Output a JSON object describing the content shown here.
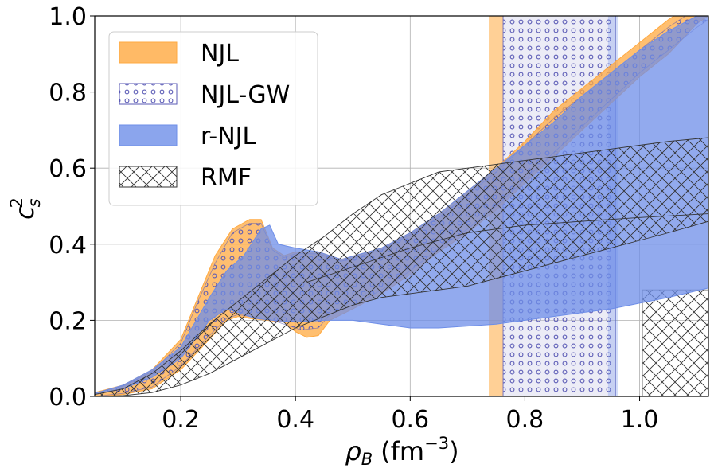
{
  "chart_data": {
    "type": "area",
    "title": "",
    "xlabel": "ρ_B (fm⁻³)",
    "xlabel_main": "ρ",
    "xlabel_sub": "B",
    "xlabel_unit": "(fm",
    "xlabel_sup": "−3",
    "xlabel_close": ")",
    "ylabel": "c_s^2",
    "ylabel_main": "c",
    "ylabel_sub": "s",
    "ylabel_sup": "2",
    "xlim": [
      0.05,
      1.12
    ],
    "ylim": [
      0.0,
      1.0
    ],
    "xticks": [
      0.2,
      0.4,
      0.6,
      0.8,
      1.0
    ],
    "xtick_labels": [
      "0.2",
      "0.4",
      "0.6",
      "0.8",
      "1.0"
    ],
    "yticks": [
      0.0,
      0.2,
      0.4,
      0.6,
      0.8,
      1.0
    ],
    "ytick_labels": [
      "0.0",
      "0.2",
      "0.4",
      "0.6",
      "0.8",
      "1.0"
    ],
    "grid": true,
    "legend_position": "top-left",
    "series": [
      {
        "name": "NJL",
        "style": "fill",
        "color": "#ffa940",
        "opacity": 0.75,
        "lower": [
          [
            0.05,
            0.0
          ],
          [
            0.1,
            0.005
          ],
          [
            0.15,
            0.02
          ],
          [
            0.2,
            0.07
          ],
          [
            0.25,
            0.15
          ],
          [
            0.28,
            0.2
          ],
          [
            0.3,
            0.21
          ],
          [
            0.32,
            0.205
          ],
          [
            0.35,
            0.2
          ],
          [
            0.38,
            0.195
          ],
          [
            0.4,
            0.17
          ],
          [
            0.42,
            0.155
          ],
          [
            0.44,
            0.16
          ],
          [
            0.46,
            0.2
          ],
          [
            0.5,
            0.23
          ],
          [
            0.55,
            0.27
          ],
          [
            0.6,
            0.32
          ],
          [
            0.65,
            0.38
          ],
          [
            0.7,
            0.43
          ],
          [
            0.75,
            0.49
          ],
          [
            0.8,
            0.56
          ],
          [
            0.85,
            0.63
          ],
          [
            0.9,
            0.7
          ],
          [
            0.95,
            0.77
          ],
          [
            1.0,
            0.84
          ],
          [
            1.05,
            0.9
          ],
          [
            1.1,
            0.98
          ],
          [
            1.12,
            1.0
          ]
        ],
        "upper": [
          [
            0.05,
            0.01
          ],
          [
            0.1,
            0.03
          ],
          [
            0.15,
            0.07
          ],
          [
            0.2,
            0.15
          ],
          [
            0.23,
            0.26
          ],
          [
            0.26,
            0.37
          ],
          [
            0.29,
            0.44
          ],
          [
            0.32,
            0.465
          ],
          [
            0.34,
            0.465
          ],
          [
            0.36,
            0.39
          ],
          [
            0.38,
            0.37
          ],
          [
            0.4,
            0.38
          ],
          [
            0.44,
            0.38
          ],
          [
            0.48,
            0.36
          ],
          [
            0.55,
            0.39
          ],
          [
            0.6,
            0.43
          ],
          [
            0.65,
            0.48
          ],
          [
            0.7,
            0.54
          ],
          [
            0.75,
            0.6
          ],
          [
            0.8,
            0.67
          ],
          [
            0.85,
            0.75
          ],
          [
            0.9,
            0.81
          ],
          [
            0.95,
            0.87
          ],
          [
            1.0,
            0.93
          ],
          [
            1.05,
            0.99
          ],
          [
            1.06,
            1.0
          ],
          [
            1.12,
            1.0
          ]
        ]
      },
      {
        "name": "NJL-GW",
        "style": "circles",
        "color": "#5a5ab5",
        "lower": [
          [
            0.05,
            0.0
          ],
          [
            0.1,
            0.008
          ],
          [
            0.15,
            0.025
          ],
          [
            0.2,
            0.08
          ],
          [
            0.25,
            0.16
          ],
          [
            0.28,
            0.205
          ],
          [
            0.3,
            0.215
          ],
          [
            0.32,
            0.21
          ],
          [
            0.35,
            0.205
          ],
          [
            0.38,
            0.19
          ],
          [
            0.41,
            0.175
          ],
          [
            0.44,
            0.18
          ],
          [
            0.46,
            0.215
          ],
          [
            0.5,
            0.24
          ],
          [
            0.55,
            0.28
          ],
          [
            0.6,
            0.33
          ],
          [
            0.65,
            0.39
          ],
          [
            0.7,
            0.44
          ],
          [
            0.75,
            0.5
          ],
          [
            0.8,
            0.57
          ],
          [
            0.85,
            0.64
          ],
          [
            0.9,
            0.71
          ],
          [
            0.95,
            0.78
          ],
          [
            1.0,
            0.85
          ],
          [
            1.05,
            0.91
          ],
          [
            1.1,
            0.97
          ],
          [
            1.12,
            0.99
          ]
        ],
        "upper": [
          [
            0.05,
            0.008
          ],
          [
            0.1,
            0.028
          ],
          [
            0.15,
            0.065
          ],
          [
            0.2,
            0.14
          ],
          [
            0.23,
            0.25
          ],
          [
            0.26,
            0.35
          ],
          [
            0.29,
            0.43
          ],
          [
            0.32,
            0.455
          ],
          [
            0.34,
            0.455
          ],
          [
            0.36,
            0.385
          ],
          [
            0.38,
            0.365
          ],
          [
            0.4,
            0.375
          ],
          [
            0.44,
            0.375
          ],
          [
            0.48,
            0.355
          ],
          [
            0.55,
            0.385
          ],
          [
            0.6,
            0.425
          ],
          [
            0.65,
            0.47
          ],
          [
            0.7,
            0.53
          ],
          [
            0.75,
            0.59
          ],
          [
            0.8,
            0.66
          ],
          [
            0.85,
            0.73
          ],
          [
            0.9,
            0.79
          ],
          [
            0.95,
            0.85
          ],
          [
            1.0,
            0.91
          ],
          [
            1.05,
            0.97
          ],
          [
            1.08,
            1.0
          ],
          [
            1.12,
            1.0
          ]
        ]
      },
      {
        "name": "r-NJL",
        "style": "fill",
        "color": "#6e8ee8",
        "opacity": 0.75,
        "lower": [
          [
            0.05,
            0.005
          ],
          [
            0.1,
            0.02
          ],
          [
            0.15,
            0.05
          ],
          [
            0.2,
            0.1
          ],
          [
            0.25,
            0.2
          ],
          [
            0.28,
            0.23
          ],
          [
            0.3,
            0.22
          ],
          [
            0.33,
            0.205
          ],
          [
            0.36,
            0.2
          ],
          [
            0.4,
            0.195
          ],
          [
            0.45,
            0.2
          ],
          [
            0.5,
            0.2
          ],
          [
            0.55,
            0.19
          ],
          [
            0.6,
            0.18
          ],
          [
            0.65,
            0.18
          ],
          [
            0.7,
            0.185
          ],
          [
            0.75,
            0.19
          ],
          [
            0.8,
            0.2
          ],
          [
            0.85,
            0.21
          ],
          [
            0.9,
            0.22
          ],
          [
            0.95,
            0.23
          ],
          [
            1.0,
            0.245
          ],
          [
            1.05,
            0.26
          ],
          [
            1.12,
            0.285
          ]
        ],
        "upper": [
          [
            0.05,
            0.008
          ],
          [
            0.1,
            0.03
          ],
          [
            0.15,
            0.07
          ],
          [
            0.2,
            0.13
          ],
          [
            0.25,
            0.26
          ],
          [
            0.28,
            0.33
          ],
          [
            0.31,
            0.37
          ],
          [
            0.34,
            0.44
          ],
          [
            0.355,
            0.45
          ],
          [
            0.37,
            0.4
          ],
          [
            0.4,
            0.39
          ],
          [
            0.44,
            0.38
          ],
          [
            0.48,
            0.36
          ],
          [
            0.55,
            0.39
          ],
          [
            0.6,
            0.43
          ],
          [
            0.65,
            0.48
          ],
          [
            0.7,
            0.54
          ],
          [
            0.75,
            0.6
          ],
          [
            0.8,
            0.66
          ],
          [
            0.85,
            0.72
          ],
          [
            0.9,
            0.79
          ],
          [
            0.95,
            0.85
          ],
          [
            1.0,
            0.91
          ],
          [
            1.05,
            0.96
          ],
          [
            1.1,
            1.0
          ],
          [
            1.12,
            1.0
          ]
        ]
      },
      {
        "name": "RMF",
        "style": "hatch",
        "color": "#333333",
        "lower": [
          [
            0.05,
            0.0
          ],
          [
            0.1,
            0.002
          ],
          [
            0.15,
            0.01
          ],
          [
            0.2,
            0.03
          ],
          [
            0.25,
            0.06
          ],
          [
            0.3,
            0.1
          ],
          [
            0.35,
            0.14
          ],
          [
            0.4,
            0.18
          ],
          [
            0.45,
            0.21
          ],
          [
            0.5,
            0.24
          ],
          [
            0.55,
            0.26
          ],
          [
            0.6,
            0.27
          ],
          [
            0.65,
            0.28
          ],
          [
            0.7,
            0.29
          ],
          [
            0.75,
            0.31
          ],
          [
            0.8,
            0.33
          ],
          [
            0.85,
            0.35
          ],
          [
            0.9,
            0.37
          ],
          [
            0.95,
            0.39
          ],
          [
            1.0,
            0.41
          ],
          [
            1.05,
            0.43
          ],
          [
            1.12,
            0.46
          ]
        ],
        "upper": [
          [
            0.05,
            0.005
          ],
          [
            0.1,
            0.02
          ],
          [
            0.15,
            0.06
          ],
          [
            0.2,
            0.12
          ],
          [
            0.25,
            0.19
          ],
          [
            0.3,
            0.25
          ],
          [
            0.35,
            0.31
          ],
          [
            0.4,
            0.37
          ],
          [
            0.45,
            0.42
          ],
          [
            0.5,
            0.48
          ],
          [
            0.55,
            0.53
          ],
          [
            0.6,
            0.56
          ],
          [
            0.65,
            0.59
          ],
          [
            0.7,
            0.6
          ],
          [
            0.75,
            0.61
          ],
          [
            0.8,
            0.62
          ],
          [
            0.85,
            0.63
          ],
          [
            0.9,
            0.64
          ],
          [
            0.95,
            0.65
          ],
          [
            1.0,
            0.66
          ],
          [
            1.05,
            0.67
          ],
          [
            1.12,
            0.68
          ]
        ],
        "lower2": [
          [
            0.42,
            0.3
          ],
          [
            0.5,
            0.34
          ],
          [
            0.6,
            0.39
          ],
          [
            0.7,
            0.43
          ],
          [
            0.8,
            0.45
          ],
          [
            0.9,
            0.46
          ],
          [
            1.0,
            0.47
          ],
          [
            1.12,
            0.48
          ]
        ]
      }
    ],
    "vertical_bands": [
      {
        "name": "NJL",
        "style": "fill",
        "color": "#ffa940",
        "opacity": 0.55,
        "x": [
          0.737,
          0.762
        ]
      },
      {
        "name": "NJL-GW",
        "style": "circles",
        "color": "#5a5ab5",
        "x": [
          0.762,
          0.958
        ]
      },
      {
        "name": "r-NJL",
        "style": "fill",
        "color": "#6e8ee8",
        "opacity": 0.3,
        "x": [
          0.945,
          0.962
        ]
      },
      {
        "name": "RMF",
        "style": "hatch",
        "color": "#333333",
        "x": [
          1.005,
          1.12
        ],
        "y": [
          0.0,
          0.28
        ]
      }
    ],
    "legend": [
      {
        "label": "NJL",
        "style": "fill",
        "color": "#ffa940"
      },
      {
        "label": "NJL-GW",
        "style": "circles",
        "color": "#5a5ab5"
      },
      {
        "label": "r-NJL",
        "style": "fill",
        "color": "#6e8ee8"
      },
      {
        "label": "RMF",
        "style": "hatch",
        "color": "#333333"
      }
    ]
  }
}
